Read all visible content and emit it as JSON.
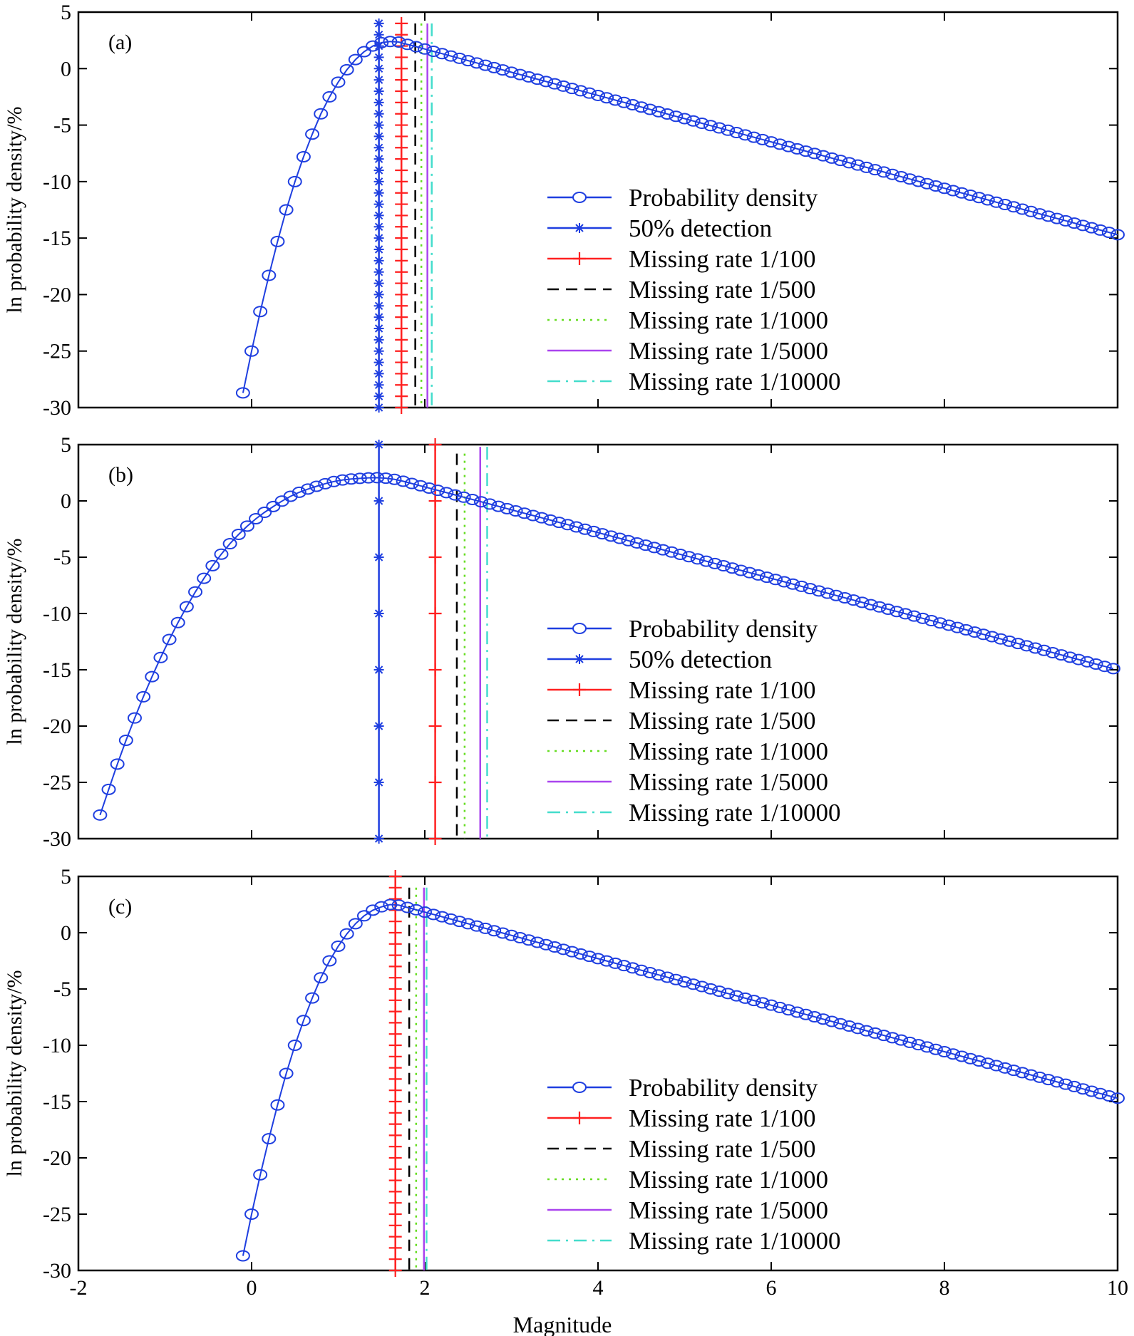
{
  "chart_data": [
    {
      "type": "line",
      "panel_label": "(a)",
      "ylabel": "ln probability density/%",
      "xlim": [
        -2,
        10
      ],
      "ylim": [
        -30,
        5
      ],
      "yticks": [
        5,
        0,
        -5,
        -10,
        -15,
        -20,
        -25,
        -30
      ],
      "xticks": [],
      "legend_placement": "lower-right",
      "curve": {
        "name": "Probability density",
        "color": "#1f3fe0",
        "x_range": [
          -0.1,
          10
        ],
        "points": [
          [
            -0.1,
            -28.7
          ],
          [
            0.0,
            -25.0
          ],
          [
            0.1,
            -21.5
          ],
          [
            0.2,
            -18.3
          ],
          [
            0.3,
            -15.3
          ],
          [
            0.4,
            -12.5
          ],
          [
            0.5,
            -10.0
          ],
          [
            0.6,
            -7.8
          ],
          [
            0.7,
            -5.8
          ],
          [
            0.8,
            -4.0
          ],
          [
            0.9,
            -2.5
          ],
          [
            1.0,
            -1.2
          ],
          [
            1.1,
            -0.1
          ],
          [
            1.2,
            0.8
          ],
          [
            1.3,
            1.5
          ],
          [
            1.4,
            2.0
          ],
          [
            1.5,
            2.3
          ],
          [
            1.6,
            2.4
          ],
          [
            1.7,
            2.35
          ],
          [
            10.0,
            -14.7
          ]
        ]
      },
      "vlines": [
        {
          "name": "50% detection",
          "x": 1.47,
          "color": "#1f3fe0",
          "style": "solid",
          "marker": "star",
          "ytop": 4.0
        },
        {
          "name": "Missing rate 1/100",
          "x": 1.73,
          "color": "#ff2020",
          "style": "solid",
          "marker": "plus",
          "ytop": 4.0
        },
        {
          "name": "Missing rate 1/500",
          "x": 1.89,
          "color": "#000000",
          "style": "dashed",
          "marker": "",
          "ytop": 4.0
        },
        {
          "name": "Missing rate 1/1000",
          "x": 1.96,
          "color": "#66dd22",
          "style": "dotted",
          "marker": "",
          "ytop": 4.0
        },
        {
          "name": "Missing rate 1/5000",
          "x": 2.03,
          "color": "#aa44ee",
          "style": "solid",
          "marker": "",
          "ytop": 4.0
        },
        {
          "name": "Missing rate 1/10000",
          "x": 2.08,
          "color": "#44ddcc",
          "style": "dashdot",
          "marker": "",
          "ytop": 4.0
        }
      ]
    },
    {
      "type": "line",
      "panel_label": "(b)",
      "ylabel": "ln probability density/%",
      "xlim": [
        -2,
        10
      ],
      "ylim": [
        -30,
        5
      ],
      "yticks": [
        5,
        0,
        -5,
        -10,
        -15,
        -20,
        -25,
        -30
      ],
      "xticks": [],
      "legend_placement": "lower-right",
      "curve": {
        "name": "Probability density",
        "color": "#1f3fe0",
        "x_range": [
          -1.75,
          10
        ],
        "points": [
          [
            -1.75,
            -27.9
          ],
          [
            -1.5,
            -22.3
          ],
          [
            -1.25,
            -17.4
          ],
          [
            -1.0,
            -13.1
          ],
          [
            -0.75,
            -9.4
          ],
          [
            -0.5,
            -6.3
          ],
          [
            -0.25,
            -3.8
          ],
          [
            0.0,
            -1.9
          ],
          [
            0.25,
            -0.5
          ],
          [
            0.5,
            0.6
          ],
          [
            0.75,
            1.3
          ],
          [
            1.0,
            1.8
          ],
          [
            1.25,
            2.0
          ],
          [
            1.5,
            2.05
          ],
          [
            1.75,
            1.75
          ],
          [
            10.0,
            -15.0
          ]
        ]
      },
      "vlines": [
        {
          "name": "50% detection",
          "x": 1.47,
          "color": "#1f3fe0",
          "style": "solid",
          "marker": "star",
          "ytop": 5.0
        },
        {
          "name": "Missing rate 1/100",
          "x": 2.12,
          "color": "#ff2020",
          "style": "solid",
          "marker": "plus",
          "ytop": 5.0
        },
        {
          "name": "Missing rate 1/500",
          "x": 2.37,
          "color": "#000000",
          "style": "dashed",
          "marker": "",
          "ytop": 4.2
        },
        {
          "name": "Missing rate 1/1000",
          "x": 2.46,
          "color": "#66dd22",
          "style": "dotted",
          "marker": "",
          "ytop": 4.2
        },
        {
          "name": "Missing rate 1/5000",
          "x": 2.64,
          "color": "#aa44ee",
          "style": "solid",
          "marker": "",
          "ytop": 4.8
        },
        {
          "name": "Missing rate 1/10000",
          "x": 2.72,
          "color": "#44ddcc",
          "style": "dashdot",
          "marker": "",
          "ytop": 4.8
        }
      ]
    },
    {
      "type": "line",
      "panel_label": "(c)",
      "ylabel": "ln probability density/%",
      "xlabel": "Magnitude",
      "xlim": [
        -2,
        10
      ],
      "ylim": [
        -30,
        5
      ],
      "yticks": [
        5,
        0,
        -5,
        -10,
        -15,
        -20,
        -25,
        -30
      ],
      "xticks": [
        -2,
        0,
        2,
        4,
        6,
        8,
        10
      ],
      "legend_placement": "lower-right",
      "curve": {
        "name": "Probability density",
        "color": "#1f3fe0",
        "x_range": [
          -0.1,
          10
        ],
        "points": [
          [
            -0.1,
            -28.7
          ],
          [
            0.0,
            -25.0
          ],
          [
            0.1,
            -21.5
          ],
          [
            0.2,
            -18.3
          ],
          [
            0.3,
            -15.3
          ],
          [
            0.4,
            -12.5
          ],
          [
            0.5,
            -10.0
          ],
          [
            0.6,
            -7.8
          ],
          [
            0.7,
            -5.8
          ],
          [
            0.8,
            -4.0
          ],
          [
            0.9,
            -2.5
          ],
          [
            1.0,
            -1.2
          ],
          [
            1.1,
            -0.1
          ],
          [
            1.2,
            0.8
          ],
          [
            1.3,
            1.5
          ],
          [
            1.4,
            2.0
          ],
          [
            1.5,
            2.3
          ],
          [
            1.6,
            2.5
          ],
          [
            1.7,
            2.45
          ],
          [
            10.0,
            -14.7
          ]
        ]
      },
      "vlines": [
        {
          "name": "Missing rate 1/100",
          "x": 1.66,
          "color": "#ff2020",
          "style": "solid",
          "marker": "plus",
          "ytop": 5.0
        },
        {
          "name": "Missing rate 1/500",
          "x": 1.82,
          "color": "#000000",
          "style": "dashed",
          "marker": "",
          "ytop": 4.0
        },
        {
          "name": "Missing rate 1/1000",
          "x": 1.9,
          "color": "#66dd22",
          "style": "dotted",
          "marker": "",
          "ytop": 4.0
        },
        {
          "name": "Missing rate 1/5000",
          "x": 1.99,
          "color": "#aa44ee",
          "style": "solid",
          "marker": "",
          "ytop": 4.0
        },
        {
          "name": "Missing rate 1/10000",
          "x": 2.02,
          "color": "#44ddcc",
          "style": "dashdot",
          "marker": "",
          "ytop": 4.0
        }
      ]
    }
  ]
}
